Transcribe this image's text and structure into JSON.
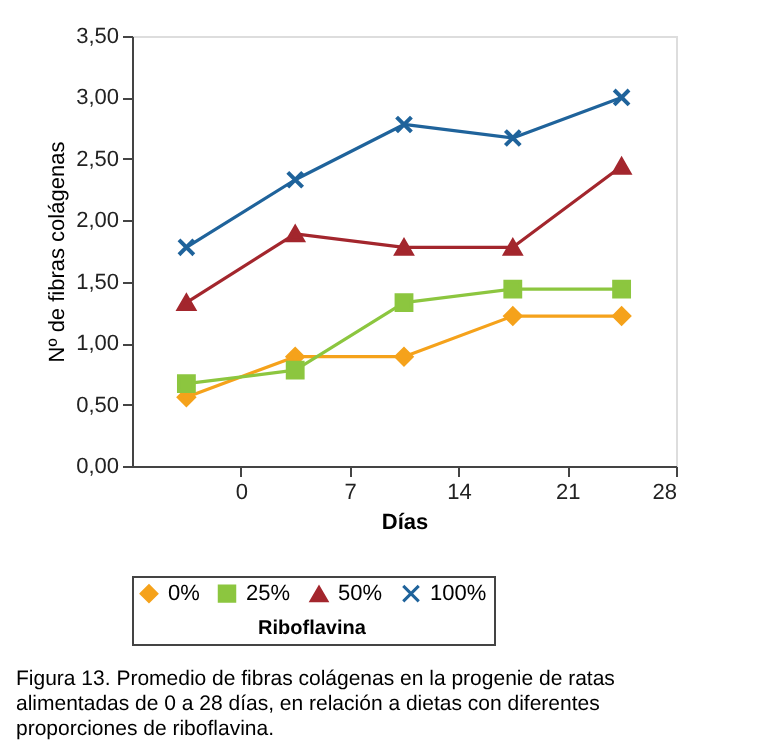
{
  "chart_data": {
    "type": "line",
    "xlabel": "Días",
    "ylabel": "Nº de fibras colágenas",
    "legend_title": "Riboflavina",
    "x": [
      -3.5,
      3.5,
      10.5,
      17.5,
      24.5
    ],
    "xlim": [
      -7,
      28
    ],
    "xticks": [
      0,
      7,
      14,
      21,
      28
    ],
    "ylim": [
      0,
      3.5
    ],
    "yticks": [
      {
        "value": 0,
        "label": "0,00"
      },
      {
        "value": 0.5,
        "label": "0,50"
      },
      {
        "value": 1,
        "label": "1,00"
      },
      {
        "value": 1.5,
        "label": "1,50"
      },
      {
        "value": 2,
        "label": "2,00"
      },
      {
        "value": 2.5,
        "label": "2,50"
      },
      {
        "value": 3,
        "label": "3,00"
      },
      {
        "value": 3.5,
        "label": "3,50"
      }
    ],
    "series": [
      {
        "name": "0%",
        "color": "#f5a21b",
        "marker": "diamond",
        "values": [
          0.56,
          0.89,
          0.89,
          1.22,
          1.22
        ]
      },
      {
        "name": "25%",
        "color": "#8cc63f",
        "marker": "square",
        "values": [
          0.67,
          0.78,
          1.33,
          1.44,
          1.44
        ]
      },
      {
        "name": "50%",
        "color": "#a3262d",
        "marker": "triangle",
        "values": [
          1.33,
          1.89,
          1.78,
          1.78,
          2.44
        ]
      },
      {
        "name": "100%",
        "color": "#1f639b",
        "marker": "cross",
        "values": [
          1.78,
          2.33,
          2.78,
          2.67,
          3.0
        ]
      }
    ],
    "grid": false,
    "legend": "bottom",
    "line_style": "solid",
    "annotations": [
      "Figura 13. Promedio de fibras colágenas en la progenie de ratas alimentadas de 0 a 28 días, en relación a dietas con diferentes proporciones de riboflavina."
    ]
  }
}
